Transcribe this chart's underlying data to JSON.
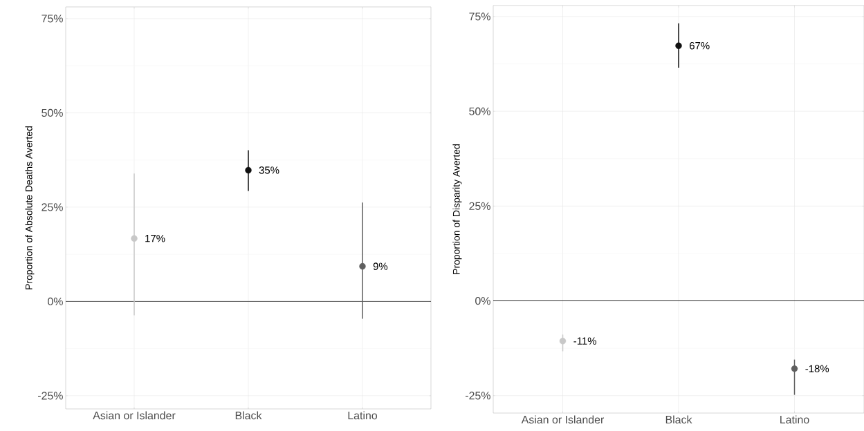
{
  "chart_data": [
    {
      "type": "scatter",
      "ylabel": "Proportion of Absolute Deaths Averted",
      "categories": [
        "Asian or Islander",
        "Black",
        "Latino"
      ],
      "values": [
        16.7,
        34.8,
        9.3
      ],
      "colors": [
        "#c8c8c8",
        "#111111",
        "#5f5f5f"
      ],
      "errors": [
        [
          -3.7,
          33.9
        ],
        [
          29.3,
          40.1
        ],
        [
          -4.6,
          26.2
        ]
      ],
      "value_labels": [
        "17%",
        "35%",
        "9%"
      ],
      "ylim": [
        -28.5,
        78.1
      ],
      "yticks": [
        {
          "value": -25,
          "label": "-25%"
        },
        {
          "value": 0,
          "label": "0%"
        },
        {
          "value": 25,
          "label": "25%"
        },
        {
          "value": 50,
          "label": "50%"
        },
        {
          "value": 75,
          "label": "75%"
        }
      ],
      "ref_lines": [
        {
          "axis": "y",
          "value": 0,
          "color": "#333333"
        }
      ],
      "grid": true
    },
    {
      "type": "scatter",
      "ylabel": "Proportion of Disparity Averted",
      "categories": [
        "Asian or Islander",
        "Black",
        "Latino"
      ],
      "values": [
        -10.6,
        67.3,
        -17.9
      ],
      "colors": [
        "#c8c8c8",
        "#111111",
        "#5f5f5f"
      ],
      "errors": [
        [
          -13.3,
          -8.9
        ],
        [
          61.5,
          73.2
        ],
        [
          -24.8,
          -15.5
        ]
      ],
      "value_labels": [
        "-11%",
        "67%",
        "-18%"
      ],
      "ylim": [
        -29.6,
        77.9
      ],
      "yticks": [
        {
          "value": -25,
          "label": "-25%"
        },
        {
          "value": 0,
          "label": "0%"
        },
        {
          "value": 25,
          "label": "25%"
        },
        {
          "value": 50,
          "label": "50%"
        },
        {
          "value": 75,
          "label": "75%"
        }
      ],
      "ref_lines": [
        {
          "axis": "y",
          "value": 0,
          "color": "#000000"
        }
      ],
      "grid": true
    }
  ]
}
